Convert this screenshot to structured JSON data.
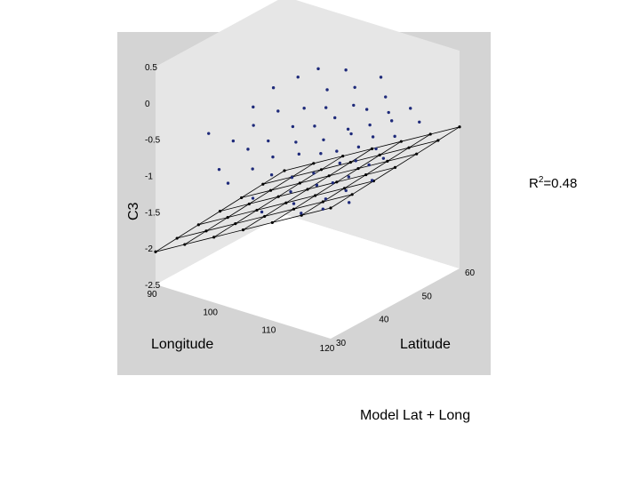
{
  "chart_data": {
    "type": "scatter",
    "subtype": "3d-scatter-with-fitted-surface",
    "axes": {
      "x": {
        "label": "Longitude",
        "ticks": [
          "90",
          "100",
          "110",
          "120"
        ],
        "range": [
          90,
          120
        ]
      },
      "y": {
        "label": "Latitude",
        "ticks": [
          "30",
          "40",
          "50",
          "60"
        ],
        "range": [
          30,
          60
        ]
      },
      "z": {
        "label": "C3",
        "ticks": [
          "0.5",
          "0",
          "-0.5",
          "-1",
          "-1.5",
          "-2",
          "-2.5"
        ],
        "range": [
          -2.5,
          0.5
        ]
      }
    },
    "surface": {
      "longitudes": [
        90,
        95,
        100,
        105,
        110,
        115,
        120
      ],
      "latitudes": [
        30,
        35,
        40,
        45,
        50,
        55,
        60
      ],
      "plane": {
        "intercept": -2.05,
        "lon_coef": 0.045,
        "lat_coef": 0.005
      }
    },
    "points": [
      {
        "lon": 91,
        "lat": 41,
        "c3": -0.75
      },
      {
        "lon": 92,
        "lat": 50,
        "c3": -0.65
      },
      {
        "lon": 93,
        "lat": 44,
        "c3": -0.9
      },
      {
        "lon": 94,
        "lat": 52,
        "c3": -0.4
      },
      {
        "lon": 95,
        "lat": 38,
        "c3": -1.05
      },
      {
        "lon": 95,
        "lat": 46,
        "c3": -0.7
      },
      {
        "lon": 96,
        "lat": 55,
        "c3": -0.3
      },
      {
        "lon": 97,
        "lat": 42,
        "c3": -0.85
      },
      {
        "lon": 97,
        "lat": 49,
        "c3": -0.55
      },
      {
        "lon": 98,
        "lat": 36,
        "c3": -1.1
      },
      {
        "lon": 98,
        "lat": 57,
        "c3": -0.2
      },
      {
        "lon": 99,
        "lat": 44,
        "c3": -0.75
      },
      {
        "lon": 100,
        "lat": 51,
        "c3": -0.5
      },
      {
        "lon": 100,
        "lat": 39,
        "c3": -0.95
      },
      {
        "lon": 101,
        "lat": 47,
        "c3": -0.6
      },
      {
        "lon": 101,
        "lat": 55,
        "c3": -0.35
      },
      {
        "lon": 102,
        "lat": 41,
        "c3": -0.8
      },
      {
        "lon": 102,
        "lat": 58,
        "c3": -0.15
      },
      {
        "lon": 103,
        "lat": 35,
        "c3": -1.15
      },
      {
        "lon": 103,
        "lat": 45,
        "c3": -0.7
      },
      {
        "lon": 103,
        "lat": 52,
        "c3": -0.45
      },
      {
        "lon": 104,
        "lat": 48,
        "c3": -0.55
      },
      {
        "lon": 104,
        "lat": 38,
        "c3": -0.9
      },
      {
        "lon": 105,
        "lat": 43,
        "c3": -0.75
      },
      {
        "lon": 105,
        "lat": 56,
        "c3": -0.25
      },
      {
        "lon": 106,
        "lat": 50,
        "c3": -0.45
      },
      {
        "lon": 106,
        "lat": 33,
        "c3": -1.2
      },
      {
        "lon": 106,
        "lat": 40,
        "c3": -0.95
      },
      {
        "lon": 107,
        "lat": 46,
        "c3": -0.6
      },
      {
        "lon": 107,
        "lat": 53,
        "c3": -0.35
      },
      {
        "lon": 108,
        "lat": 37,
        "c3": -1.0
      },
      {
        "lon": 108,
        "lat": 44,
        "c3": -0.7
      },
      {
        "lon": 108,
        "lat": 58,
        "c3": -0.1
      },
      {
        "lon": 109,
        "lat": 49,
        "c3": -0.5
      },
      {
        "lon": 109,
        "lat": 41,
        "c3": -0.85
      },
      {
        "lon": 110,
        "lat": 35,
        "c3": -1.05
      },
      {
        "lon": 110,
        "lat": 52,
        "c3": -0.3
      },
      {
        "lon": 110,
        "lat": 45,
        "c3": -0.65
      },
      {
        "lon": 111,
        "lat": 47,
        "c3": -0.45
      },
      {
        "lon": 111,
        "lat": 39,
        "c3": -0.9
      },
      {
        "lon": 111,
        "lat": 55,
        "c3": -0.2
      },
      {
        "lon": 112,
        "lat": 43,
        "c3": -0.7
      },
      {
        "lon": 112,
        "lat": 50,
        "c3": -0.4
      },
      {
        "lon": 112,
        "lat": 34,
        "c3": -1.1
      },
      {
        "lon": 113,
        "lat": 46,
        "c3": -0.55
      },
      {
        "lon": 113,
        "lat": 40,
        "c3": -0.85
      },
      {
        "lon": 113,
        "lat": 53,
        "c3": -0.3
      },
      {
        "lon": 114,
        "lat": 37,
        "c3": -0.95
      },
      {
        "lon": 114,
        "lat": 48,
        "c3": -0.45
      },
      {
        "lon": 114,
        "lat": 44,
        "c3": -0.65
      },
      {
        "lon": 115,
        "lat": 41,
        "c3": -0.75
      },
      {
        "lon": 115,
        "lat": 51,
        "c3": -0.3
      },
      {
        "lon": 115,
        "lat": 35,
        "c3": -1.0
      },
      {
        "lon": 116,
        "lat": 46,
        "c3": -0.5
      },
      {
        "lon": 116,
        "lat": 39,
        "c3": -0.85
      },
      {
        "lon": 116,
        "lat": 54,
        "c3": -0.2
      },
      {
        "lon": 117,
        "lat": 43,
        "c3": -0.6
      },
      {
        "lon": 117,
        "lat": 49,
        "c3": -0.4
      },
      {
        "lon": 118,
        "lat": 37,
        "c3": -0.9
      },
      {
        "lon": 118,
        "lat": 45,
        "c3": -0.55
      },
      {
        "lon": 119,
        "lat": 41,
        "c3": -0.7
      },
      {
        "lon": 119,
        "lat": 52,
        "c3": -0.25
      }
    ],
    "annotation": "R2=0.48",
    "title": "",
    "grid": false,
    "colors": {
      "panel": "#ffffff",
      "walls": "#e6e6e6",
      "background": "#d4d4d4",
      "points": "#1e2a7a",
      "mesh": "#000000"
    }
  },
  "labels": {
    "r2_text": "R",
    "r2_sup": "2",
    "r2_value": "=0.48",
    "caption": "Model Lat + Long"
  }
}
